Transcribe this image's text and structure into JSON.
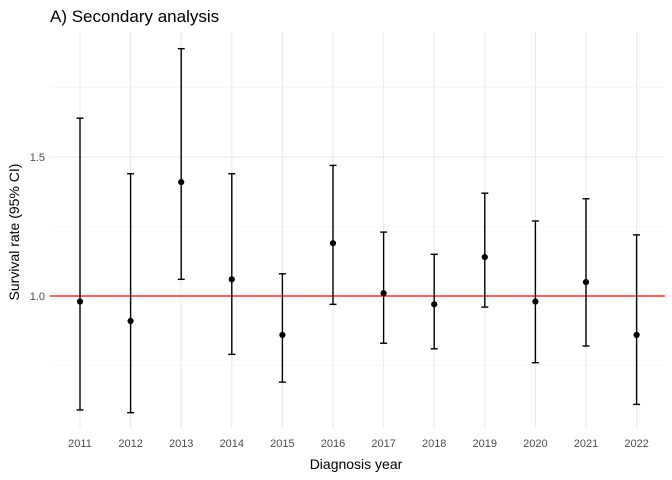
{
  "chart_data": {
    "type": "scatter",
    "title": "A) Secondary analysis",
    "xlabel": "Diagnosis year",
    "ylabel": "Survival rate (95% CI)",
    "categories": [
      "2011",
      "2012",
      "2013",
      "2014",
      "2015",
      "2016",
      "2017",
      "2018",
      "2019",
      "2020",
      "2021",
      "2022"
    ],
    "series": [
      {
        "estimate": [
          0.98,
          0.91,
          1.41,
          1.06,
          0.86,
          1.19,
          1.01,
          0.97,
          1.14,
          0.98,
          1.05,
          0.86
        ],
        "lower": [
          0.59,
          0.58,
          1.06,
          0.79,
          0.69,
          0.97,
          0.83,
          0.81,
          0.96,
          0.76,
          0.82,
          0.61
        ],
        "upper": [
          1.64,
          1.44,
          1.89,
          1.44,
          1.08,
          1.47,
          1.23,
          1.15,
          1.37,
          1.27,
          1.35,
          1.22
        ]
      }
    ],
    "reference_line": {
      "y": 1.0,
      "color": "#ff0000"
    },
    "y_ticks": [
      "1.0",
      "1.5"
    ],
    "ylim": [
      0.525,
      1.95
    ],
    "grid": true,
    "legend": "none",
    "colors": {
      "point": "#000000",
      "errorbar": "#000000",
      "reference": "#ff0000",
      "grid": "#ebebeb"
    }
  }
}
